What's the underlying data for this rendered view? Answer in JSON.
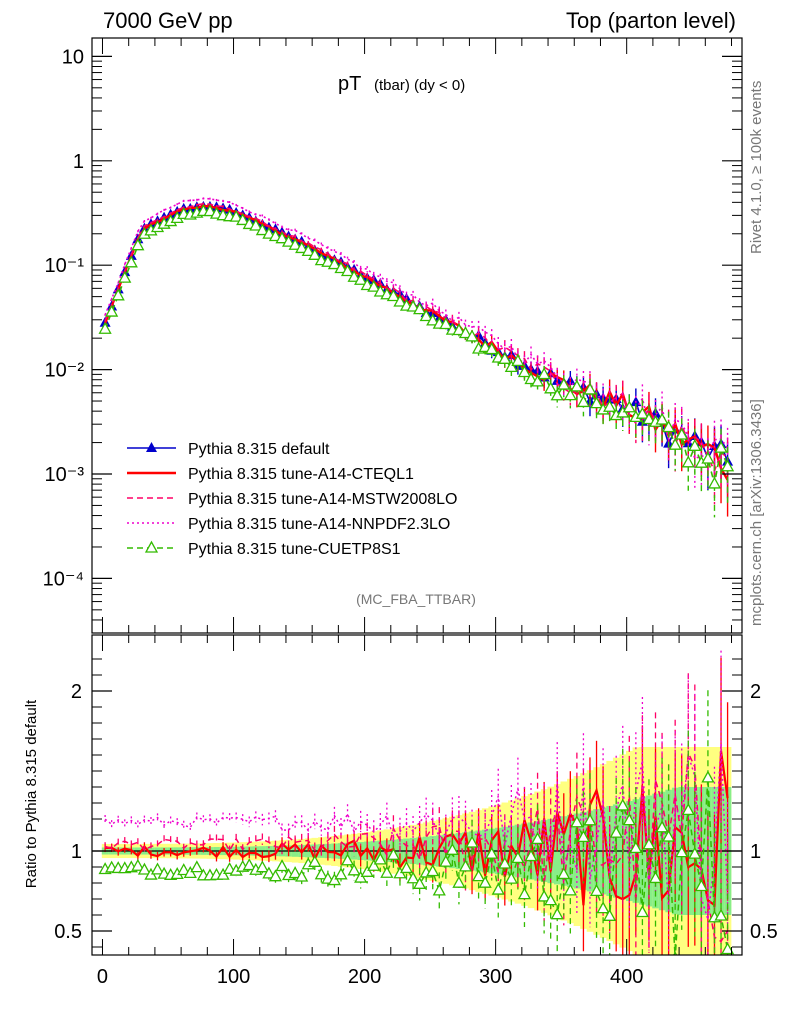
{
  "header": {
    "left": "7000 GeV pp",
    "right": "Top (parton level)"
  },
  "side_text": {
    "rivet": "Rivet 4.1.0, ≥ 100k events",
    "mcplots": "mcplots.cern.ch [arXiv:1306.3436]"
  },
  "chart_data": [
    {
      "type": "line",
      "title": "pT",
      "title_sub": "(tbar) (dy < 0)",
      "analysis_tag": "(MC_FBA_TTBAR)",
      "xlabel": "",
      "ylabel": "",
      "yscale": "log",
      "xlim": [
        -8,
        488
      ],
      "ylim": [
        3e-05,
        15
      ],
      "x_ticks": [
        0,
        100,
        200,
        300,
        400
      ],
      "y_tick_labels": [
        "10",
        "1",
        "10⁻¹",
        "10⁻²",
        "10⁻³",
        "10⁻⁴"
      ],
      "y_tick_values": [
        10,
        1,
        0.1,
        0.01,
        0.001,
        0.0001
      ],
      "legend_position": "lower-left",
      "series": [
        {
          "name": "Pythia 8.315 default",
          "color": "#0000cc",
          "dash": "solid",
          "marker": "filled-triangle",
          "scale": 1.0
        },
        {
          "name": "Pythia 8.315 tune-A14-CTEQL1",
          "color": "#ff0000",
          "dash": "solid",
          "marker": "none",
          "scale": 1.0
        },
        {
          "name": "Pythia 8.315 tune-A14-MSTW2008LO",
          "color": "#ff0066",
          "dash": "dashed",
          "marker": "none",
          "scale": 1.04
        },
        {
          "name": "Pythia 8.315 tune-A14-NNPDF2.3LO",
          "color": "#ee00cc",
          "dash": "dotted",
          "marker": "none",
          "scale": 1.18
        },
        {
          "name": "Pythia 8.315 tune-CUETP8S1",
          "color": "#33bb00",
          "dash": "dashed",
          "marker": "open-triangle",
          "scale": 0.88
        }
      ],
      "shape": {
        "x": [
          2,
          30,
          60,
          80,
          100,
          150,
          200,
          250,
          300,
          350,
          400,
          450,
          478
        ],
        "y": [
          0.028,
          0.22,
          0.34,
          0.37,
          0.33,
          0.17,
          0.078,
          0.035,
          0.016,
          0.0075,
          0.0045,
          0.002,
          0.0013
        ]
      }
    },
    {
      "type": "line",
      "title": "",
      "xlabel": "",
      "ylabel": "Ratio to Pythia 8.315 default",
      "xlim": [
        -8,
        488
      ],
      "ylim": [
        0.35,
        2.35
      ],
      "y_ticks": [
        0.5,
        1,
        2
      ],
      "y_tick_labels": [
        "0.5",
        "1",
        "2"
      ],
      "bands": [
        {
          "name": "uncertainty-outer",
          "color": "#ffff80"
        },
        {
          "name": "uncertainty-inner",
          "color": "#88ee88"
        }
      ],
      "series_ratio_levels": [
        1.0,
        1.0,
        1.04,
        1.18,
        0.88
      ]
    }
  ]
}
